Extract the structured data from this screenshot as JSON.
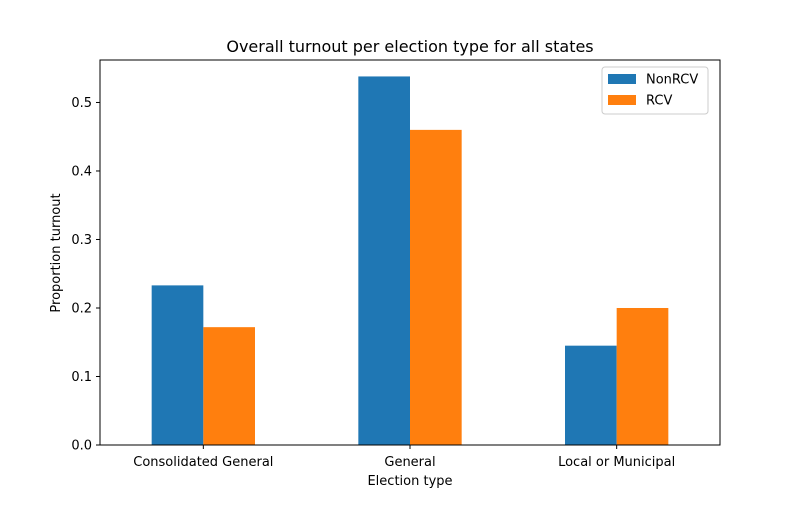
{
  "chart_data": {
    "type": "bar",
    "title": "Overall turnout per election type for all states",
    "xlabel": "Election type",
    "ylabel": "Proportion turnout",
    "categories": [
      "Consolidated General",
      "General",
      "Local or Municipal"
    ],
    "series": [
      {
        "name": "NonRCV",
        "color": "#1f77b4",
        "values": [
          0.233,
          0.538,
          0.145
        ]
      },
      {
        "name": "RCV",
        "color": "#ff7f0e",
        "values": [
          0.172,
          0.46,
          0.2
        ]
      }
    ],
    "ylim": [
      0,
      0.562
    ],
    "yticks": [
      "0.0",
      "0.1",
      "0.2",
      "0.3",
      "0.4",
      "0.5"
    ],
    "grid": false,
    "legend_position": "top-right"
  }
}
